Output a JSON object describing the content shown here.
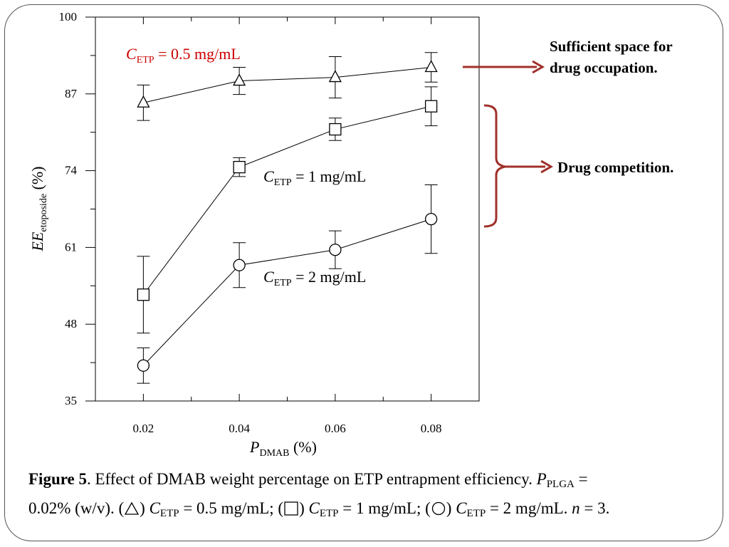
{
  "chart_data": {
    "type": "line",
    "x": [
      0.02,
      0.04,
      0.06,
      0.08
    ],
    "x_ticks": [
      "0.02",
      "0.04",
      "0.06",
      "0.08"
    ],
    "y_ticks": [
      "35",
      "48",
      "61",
      "74",
      "87",
      "100"
    ],
    "xlim": [
      0.01,
      0.09
    ],
    "ylim": [
      35,
      100
    ],
    "xlabel": {
      "main": "P",
      "sub": "DMAB",
      "unit": " (%)"
    },
    "ylabel": {
      "main": "EE",
      "sub": "etoposide",
      "unit": " (%)"
    },
    "grid": false,
    "series": [
      {
        "name": "C_ETP = 0.5 mg/mL",
        "marker": "triangle",
        "values": [
          85.5,
          89.2,
          89.8,
          91.5
        ],
        "errors": [
          3.0,
          2.3,
          3.5,
          2.5
        ],
        "label": {
          "main": "C",
          "sub": "ETP",
          "rest": " = 0.5 mg/mL"
        }
      },
      {
        "name": "C_ETP = 1 mg/mL",
        "marker": "square",
        "values": [
          53.0,
          74.6,
          81.0,
          84.9
        ],
        "errors": [
          6.5,
          1.6,
          1.9,
          3.3
        ],
        "label": {
          "main": "C",
          "sub": "ETP",
          "rest": " = 1 mg/mL"
        }
      },
      {
        "name": "C_ETP = 2 mg/mL",
        "marker": "circle",
        "values": [
          41.0,
          58.0,
          60.6,
          65.8
        ],
        "errors": [
          3.0,
          3.8,
          3.2,
          5.8
        ],
        "label": {
          "main": "C",
          "sub": "ETP",
          "rest": " = 2 mg/mL"
        }
      }
    ],
    "annotations": {
      "sufficient": [
        "Sufficient space for",
        "drug occupation."
      ],
      "competition": "Drug competition."
    }
  },
  "caption": {
    "figure_label": "Figure 5",
    "text1": ". Effect of DMAB weight percentage on ETP entrapment efficiency. ",
    "p": "P",
    "p_sub": "PLGA",
    "eq1": " =",
    "text2": "0.02% (w/v). (",
    "c": "C",
    "sub": "ETP",
    "part1": " = 0.5 mg/mL; (",
    "part2": " = 1 mg/mL; (",
    "part3": " = 2 mg/mL. ",
    "n": "n",
    "n_rest": " = 3."
  },
  "colors": {
    "accent_red": "#cc0000",
    "arrow": "#a0302a"
  }
}
